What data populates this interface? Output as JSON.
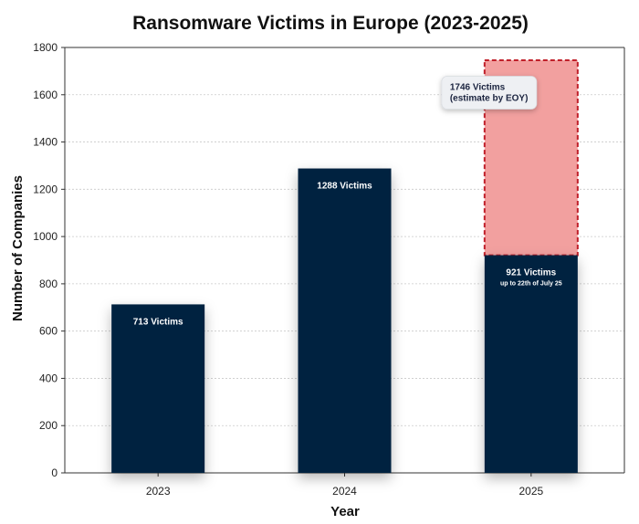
{
  "chart_data": {
    "type": "bar",
    "title": "Ransomware Victims in Europe (2023-2025)",
    "xlabel": "Year",
    "ylabel": "Number of Companies",
    "ylim": [
      0,
      1800
    ],
    "yticks": [
      0,
      200,
      400,
      600,
      800,
      1000,
      1200,
      1400,
      1600,
      1800
    ],
    "grid": true,
    "categories": [
      "2023",
      "2024",
      "2025"
    ],
    "series": [
      {
        "values": [
          713,
          1288,
          921
        ]
      },
      {
        "values": [
          null,
          null,
          1746
        ]
      }
    ],
    "bar_labels": [
      "713 Victims",
      "1288 Victims",
      "921 Victims"
    ],
    "bar_sublabels": [
      "",
      "",
      "up to 22th of July 25"
    ],
    "estimate_label_lines": [
      "1746 Victims",
      "(estimate by EOY)"
    ],
    "colors": {
      "bar": "#01203f",
      "estimate_fill": "#f2a09f",
      "estimate_border": "#c0202a",
      "grid": "#c9c9c9",
      "axis": "#333333"
    }
  }
}
